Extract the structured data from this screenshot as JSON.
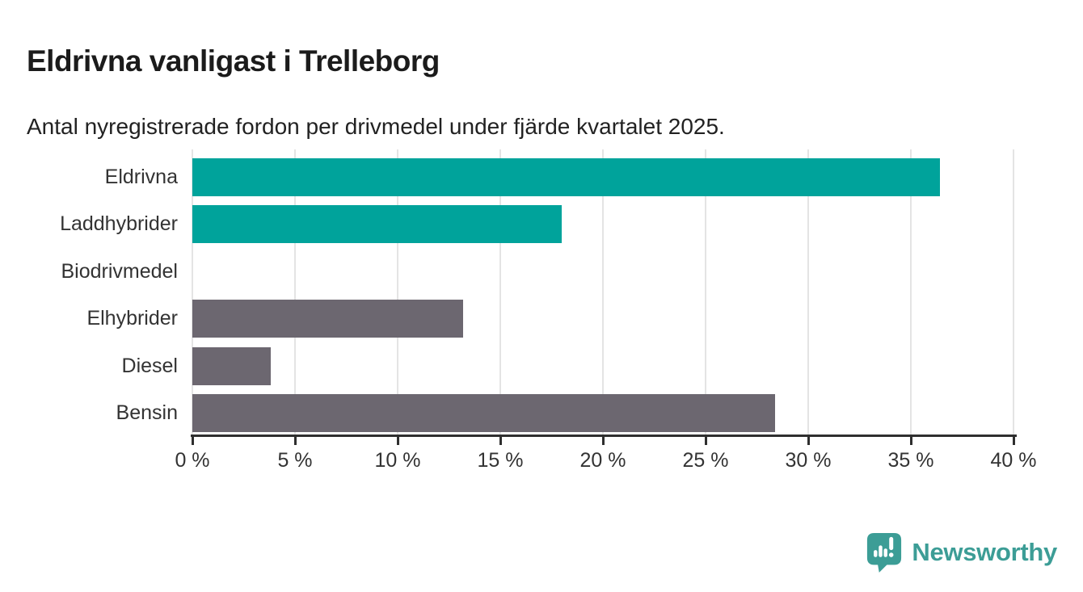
{
  "header": {
    "title": "Eldrivna vanligast i Trelleborg",
    "subtitle": "Antal nyregistrerade fordon per drivmedel under fjärde kvartalet 2025."
  },
  "chart_data": {
    "type": "bar",
    "orientation": "horizontal",
    "title": "Eldrivna vanligast i Trelleborg",
    "subtitle": "Antal nyregistrerade fordon per drivmedel under fjärde kvartalet 2025.",
    "categories": [
      "Eldrivna",
      "Laddhybrider",
      "Biodrivmedel",
      "Elhybrider",
      "Diesel",
      "Bensin"
    ],
    "values": [
      36.4,
      18.0,
      0,
      13.2,
      3.8,
      28.4
    ],
    "unit": "%",
    "xlim": [
      0,
      40
    ],
    "xticks": [
      0,
      5,
      10,
      15,
      20,
      25,
      30,
      35,
      40
    ],
    "xtick_labels": [
      "0 %",
      "5 %",
      "10 %",
      "15 %",
      "20 %",
      "25 %",
      "30 %",
      "35 %",
      "40 %"
    ],
    "series_colors": [
      "#00a39b",
      "#00a39b",
      "#6c6770",
      "#6c6770",
      "#6c6770",
      "#6c6770"
    ],
    "grid": true,
    "legend": false,
    "colors": {
      "teal": "#00a39b",
      "gray": "#6c6770",
      "gridline": "#e4e4e4",
      "axis": "#2f2f2f",
      "text": "#333333"
    }
  },
  "footer": {
    "brand": "Newsworthy",
    "brand_color": "#3c9d96",
    "logo_icon": "newsworthy-speech-bubble-chart-icon"
  }
}
